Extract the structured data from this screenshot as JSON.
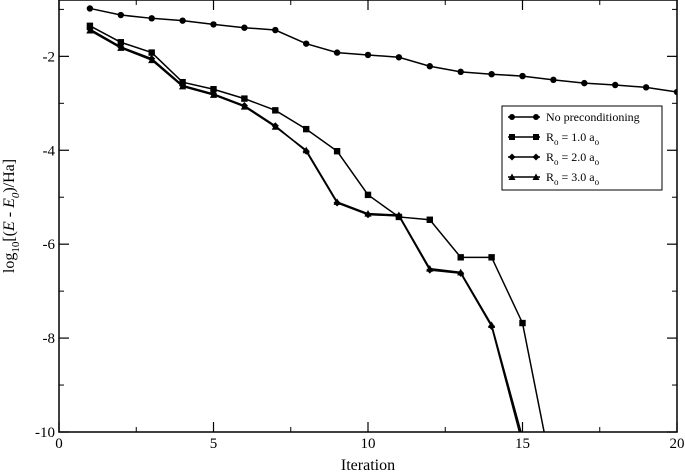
{
  "chart_data": {
    "type": "line",
    "xlabel": "Iteration",
    "ylabel": {
      "prefix": "log",
      "prefix_sub": "10",
      "open": "[(",
      "var": "E",
      "minus": " - ",
      "var0": "E",
      "var0_sub": "0",
      "close": ")/Ha]"
    },
    "xlim": [
      0,
      20
    ],
    "ylim": [
      -10,
      -0.8
    ],
    "x_ticks": [
      0,
      5,
      10,
      15,
      20
    ],
    "y_ticks": [
      -10,
      -8,
      -6,
      -4,
      -2
    ],
    "x_tick_labels": [
      "0",
      "5",
      "10",
      "15",
      "20"
    ],
    "y_tick_labels": [
      "-10",
      "-8",
      "-6",
      "-4",
      "-2"
    ],
    "legend_position": "right",
    "series": [
      {
        "name": "No preconditioning",
        "marker": "circle",
        "x": [
          1,
          2,
          3,
          4,
          5,
          6,
          7,
          8,
          9,
          10,
          11,
          12,
          13,
          14,
          15,
          16,
          17,
          18,
          19,
          20
        ],
        "y": [
          -0.98,
          -1.12,
          -1.19,
          -1.24,
          -1.32,
          -1.39,
          -1.44,
          -1.73,
          -1.92,
          -1.97,
          -2.02,
          -2.21,
          -2.33,
          -2.38,
          -2.42,
          -2.5,
          -2.57,
          -2.61,
          -2.66,
          -2.76
        ]
      },
      {
        "name": "R₀ = 1.0 a₀",
        "label": {
          "base": "R",
          "sub1": "o",
          "mid": " = 1.0 a",
          "sub2": "o"
        },
        "marker": "square",
        "x": [
          1,
          2,
          3,
          4,
          5,
          6,
          7,
          8,
          9,
          10,
          11,
          12,
          13,
          14,
          15,
          15.7
        ],
        "y": [
          -1.35,
          -1.7,
          -1.92,
          -2.55,
          -2.7,
          -2.9,
          -3.15,
          -3.55,
          -4.02,
          -4.95,
          -5.42,
          -5.48,
          -6.28,
          -6.28,
          -7.68,
          -10.0
        ]
      },
      {
        "name": "R₀ = 2.0 a₀",
        "label": {
          "base": "R",
          "sub1": "o",
          "mid": " = 2.0 a",
          "sub2": "o"
        },
        "marker": "diamond",
        "x": [
          1,
          2,
          3,
          4,
          5,
          6,
          7,
          8,
          9,
          10,
          11,
          12,
          13,
          14,
          14.9
        ],
        "y": [
          -1.42,
          -1.8,
          -2.05,
          -2.62,
          -2.8,
          -3.05,
          -3.48,
          -4.02,
          -5.12,
          -5.37,
          -5.4,
          -6.55,
          -6.62,
          -7.75,
          -10.0
        ]
      },
      {
        "name": "R₀ = 3.0 a₀",
        "label": {
          "base": "R",
          "sub1": "o",
          "mid": " = 3.0 a",
          "sub2": "o"
        },
        "marker": "triangle",
        "x": [
          1,
          2,
          3,
          4,
          5,
          6,
          7,
          8,
          9,
          10,
          11,
          12,
          13,
          14,
          14.95
        ],
        "y": [
          -1.45,
          -1.82,
          -2.08,
          -2.64,
          -2.82,
          -3.07,
          -3.5,
          -4.0,
          -5.1,
          -5.35,
          -5.38,
          -6.52,
          -6.6,
          -7.72,
          -10.0
        ]
      }
    ]
  }
}
